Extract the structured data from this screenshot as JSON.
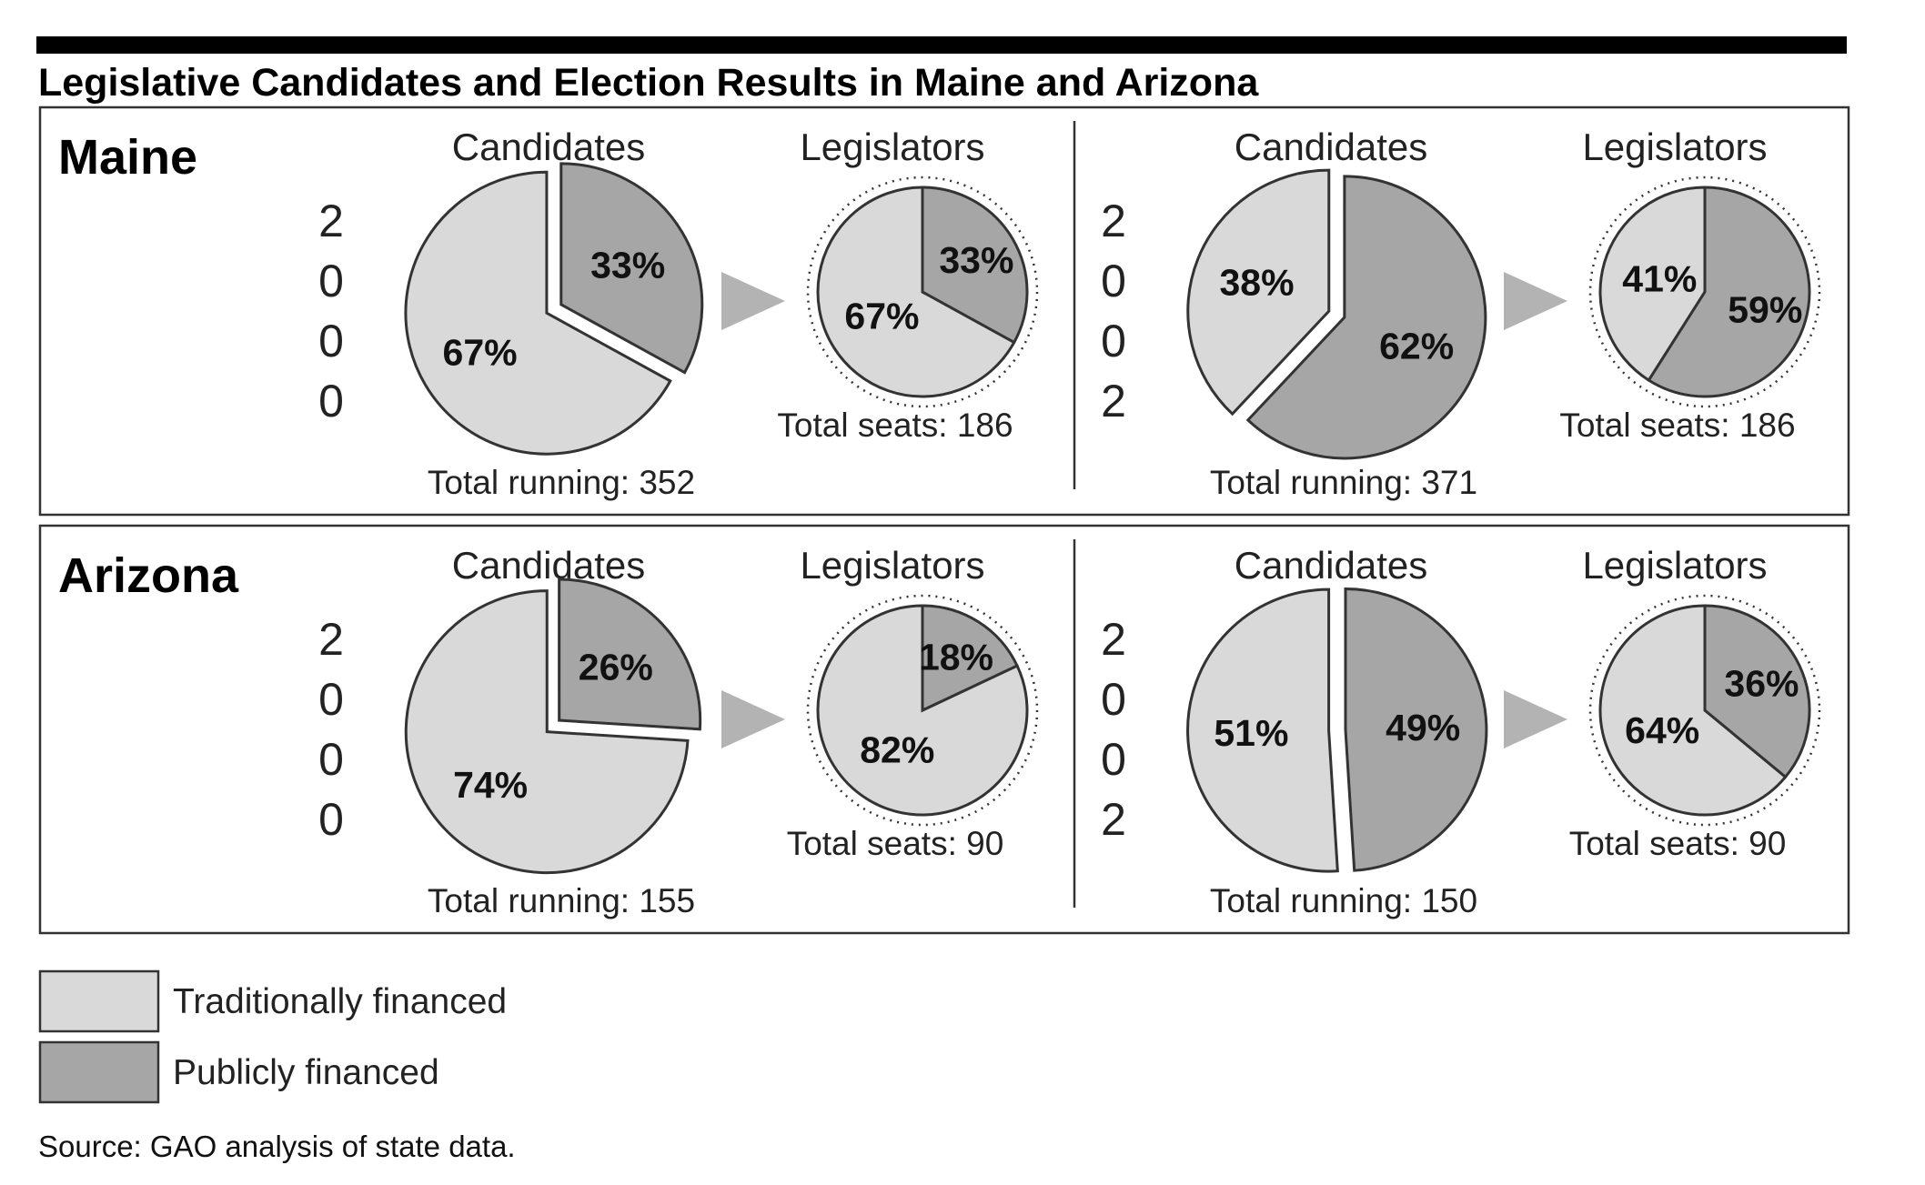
{
  "title": "Legislative Candidates and Election Results in Maine and Arizona",
  "source": "Source: GAO analysis of state data.",
  "colors": {
    "traditional": "#d9d9d9",
    "public": "#a6a6a6",
    "outline": "#333333",
    "arrow": "#b3b3b3"
  },
  "legend": [
    {
      "label": "Traditionally financed",
      "color_key": "traditional"
    },
    {
      "label": "Publicly financed",
      "color_key": "public"
    }
  ],
  "chart_data": {
    "type": "pie",
    "series_names": [
      "Traditionally financed",
      "Publicly financed"
    ],
    "panels": [
      {
        "state": "Maine",
        "years": [
          {
            "year": "2000",
            "candidates": {
              "header": "Candidates",
              "traditional_pct": 67,
              "public_pct": 33,
              "total_label": "Total running: 352"
            },
            "legislators": {
              "header": "Legislators",
              "traditional_pct": 67,
              "public_pct": 33,
              "total_label": "Total seats: 186"
            }
          },
          {
            "year": "2002",
            "candidates": {
              "header": "Candidates",
              "traditional_pct": 38,
              "public_pct": 62,
              "total_label": "Total running: 371"
            },
            "legislators": {
              "header": "Legislators",
              "traditional_pct": 41,
              "public_pct": 59,
              "total_label": "Total seats: 186"
            }
          }
        ]
      },
      {
        "state": "Arizona",
        "years": [
          {
            "year": "2000",
            "candidates": {
              "header": "Candidates",
              "traditional_pct": 74,
              "public_pct": 26,
              "total_label": "Total running: 155"
            },
            "legislators": {
              "header": "Legislators",
              "traditional_pct": 82,
              "public_pct": 18,
              "total_label": "Total seats: 90"
            }
          },
          {
            "year": "2002",
            "candidates": {
              "header": "Candidates",
              "traditional_pct": 51,
              "public_pct": 49,
              "total_label": "Total running: 150"
            },
            "legislators": {
              "header": "Legislators",
              "traditional_pct": 64,
              "public_pct": 36,
              "total_label": "Total seats: 90"
            }
          }
        ]
      }
    ]
  }
}
